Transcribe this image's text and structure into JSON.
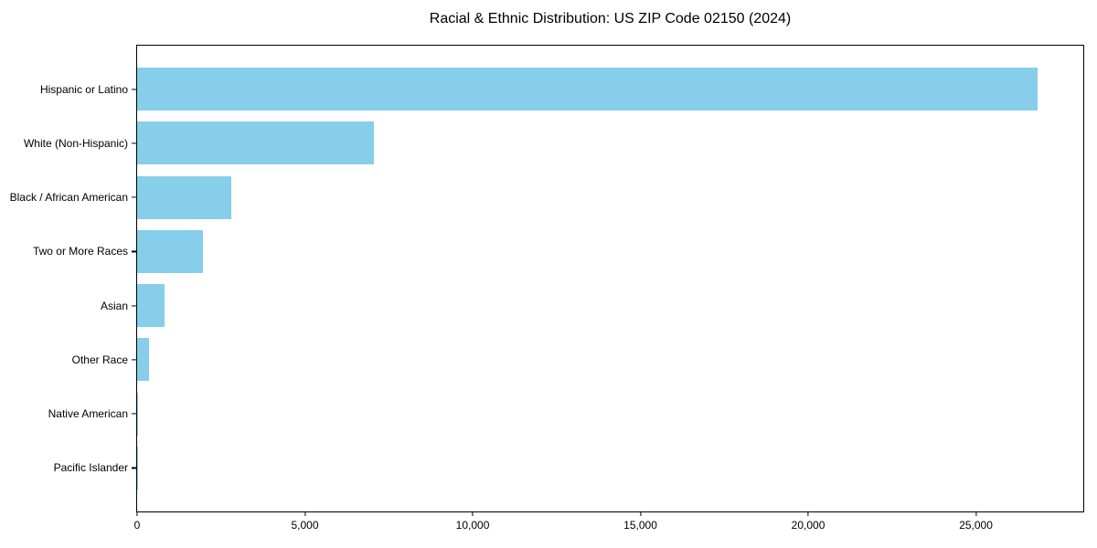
{
  "chart_data": {
    "type": "bar",
    "orientation": "horizontal",
    "title": "Racial & Ethnic Distribution: US ZIP Code 02150 (2024)",
    "categories": [
      "Hispanic or Latino",
      "White (Non-Hispanic)",
      "Black / African American",
      "Two or More Races",
      "Asian",
      "Other Race",
      "Native American",
      "Pacific Islander"
    ],
    "values": [
      26850,
      7045,
      2800,
      1960,
      815,
      355,
      30,
      10
    ],
    "xlabel": "",
    "ylabel": "",
    "xlim": [
      0,
      28200
    ],
    "xticks": [
      0,
      5000,
      10000,
      15000,
      20000,
      25000
    ],
    "xtick_labels": [
      "0",
      "5,000",
      "10,000",
      "15,000",
      "20,000",
      "25,000"
    ],
    "grid": false,
    "legend": null,
    "bar_color": "#87CEEB",
    "frame_color": "#000000",
    "text_color": "#000000"
  }
}
